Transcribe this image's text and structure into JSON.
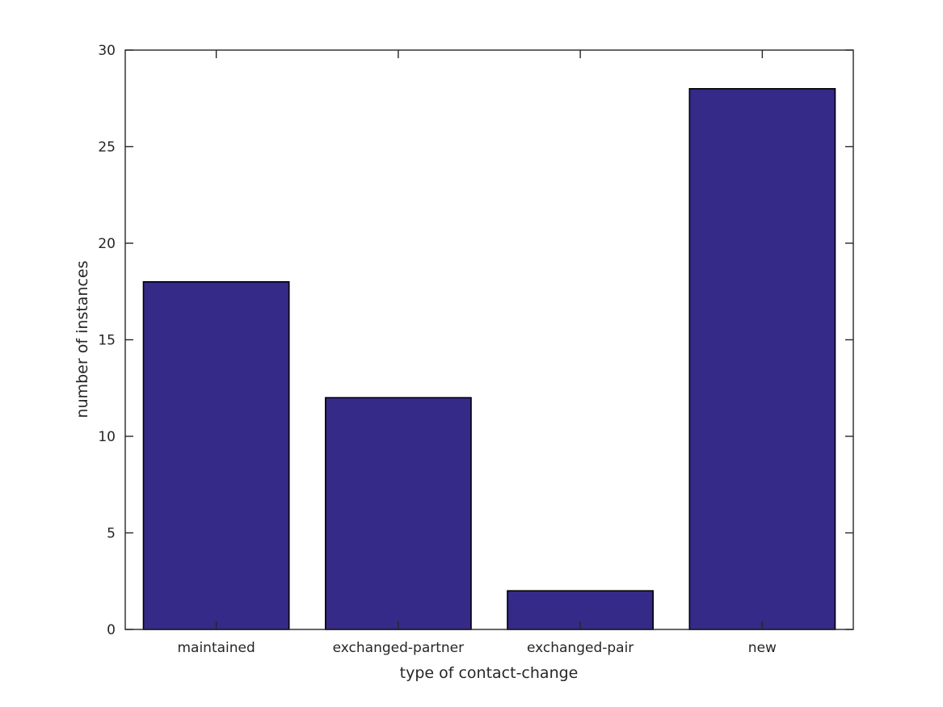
{
  "figure": {
    "background_color": "#ffffff"
  },
  "chart_data": {
    "type": "bar",
    "title": "",
    "xlabel": "type of contact-change",
    "ylabel": "number of instances",
    "categories": [
      "maintained",
      "exchanged-partner",
      "exchanged-pair",
      "new"
    ],
    "values": [
      18,
      12,
      2,
      28
    ],
    "ylim": [
      0,
      30
    ],
    "yticks": [
      0,
      5,
      10,
      15,
      20,
      25,
      30
    ],
    "bar_color": "#352A87",
    "bar_edge_color": "#000000",
    "axis_color": "#262626",
    "grid": false,
    "legend_position": "none",
    "bar_width_fraction": 0.8,
    "tick_direction": "in",
    "box": true
  }
}
